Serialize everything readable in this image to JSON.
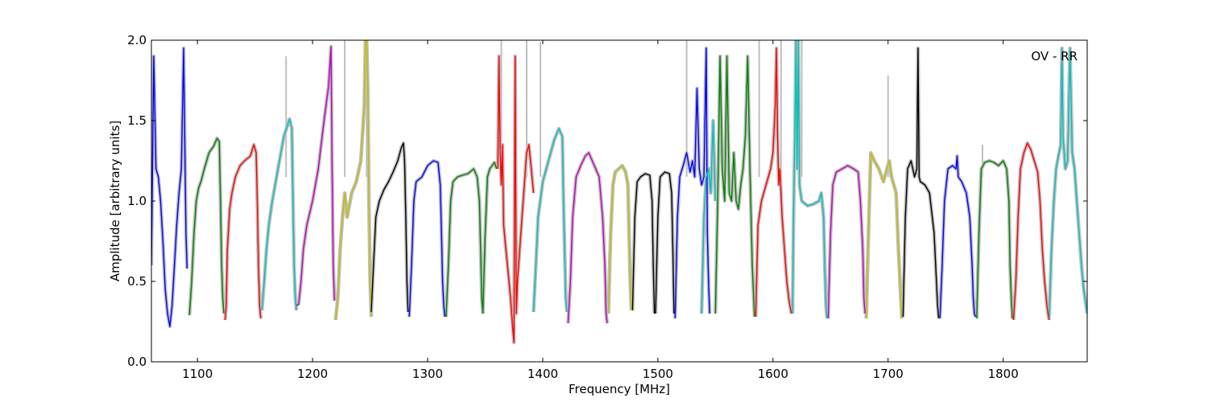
{
  "chart_data": {
    "type": "line",
    "title": "",
    "annotation": "OV - RR",
    "xlabel": "Frequency [MHz]",
    "ylabel": "Amplitude [arbitrary units]",
    "xlim": [
      1060,
      1873
    ],
    "ylim": [
      0.0,
      2.0
    ],
    "xticks": [
      1100,
      1200,
      1300,
      1400,
      1500,
      1600,
      1700,
      1800
    ],
    "xtick_labels": [
      "1100",
      "1200",
      "1300",
      "1400",
      "1500",
      "1600",
      "1700",
      "1800"
    ],
    "yticks": [
      0.0,
      0.5,
      1.0,
      1.5,
      2.0
    ],
    "ytick_labels": [
      "0.0",
      "0.5",
      "1.0",
      "1.5",
      "2.0"
    ],
    "grid": false,
    "legend": "none",
    "raw_color": "#bfbfbf",
    "series": [
      {
        "color": "#0000ff",
        "x": [
          1060,
          1062,
          1064,
          1066,
          1068,
          1070,
          1072,
          1074,
          1076,
          1078,
          1080,
          1082,
          1084,
          1086,
          1088,
          1090,
          1091
        ],
        "y": [
          0.6,
          1.9,
          1.2,
          1.15,
          1.0,
          0.75,
          0.45,
          0.3,
          0.22,
          0.35,
          0.6,
          0.85,
          1.05,
          1.2,
          1.95,
          0.8,
          0.58
        ]
      },
      {
        "color": "#008000",
        "x": [
          1093,
          1095,
          1097,
          1099,
          1101,
          1103,
          1106,
          1110,
          1114,
          1117,
          1119,
          1120,
          1121,
          1122,
          1123
        ],
        "y": [
          0.29,
          0.5,
          0.8,
          1.0,
          1.08,
          1.12,
          1.2,
          1.3,
          1.34,
          1.39,
          1.37,
          1.0,
          0.6,
          0.4,
          0.3
        ]
      },
      {
        "color": "#ff0000",
        "x": [
          1124,
          1125,
          1126,
          1128,
          1130,
          1133,
          1137,
          1141,
          1146,
          1149,
          1151,
          1152,
          1153,
          1154,
          1155
        ],
        "y": [
          0.26,
          0.35,
          0.7,
          0.95,
          1.05,
          1.15,
          1.22,
          1.25,
          1.28,
          1.35,
          1.3,
          1.0,
          0.6,
          0.35,
          0.27
        ]
      },
      {
        "color": "#00bfbf",
        "x": [
          1156,
          1158,
          1160,
          1162,
          1165,
          1170,
          1175,
          1180,
          1182,
          1183,
          1184,
          1185,
          1186
        ],
        "y": [
          0.32,
          0.5,
          0.7,
          0.85,
          1.0,
          1.2,
          1.4,
          1.51,
          1.45,
          1.0,
          0.6,
          0.4,
          0.32
        ]
      },
      {
        "color": "#bf00bf",
        "x": [
          1186,
          1188,
          1190,
          1192,
          1195,
          1200,
          1205,
          1210,
          1214,
          1216,
          1217,
          1218,
          1219
        ],
        "y": [
          0.35,
          0.36,
          0.5,
          0.7,
          0.85,
          1.0,
          1.2,
          1.5,
          1.72,
          1.96,
          1.2,
          0.6,
          0.38
        ]
      },
      {
        "color": "#bfbf00",
        "x": [
          1220,
          1222,
          1224,
          1226,
          1228,
          1230,
          1234,
          1238,
          1242,
          1245,
          1246,
          1247,
          1248,
          1249,
          1250,
          1251
        ],
        "y": [
          0.26,
          0.4,
          0.7,
          0.9,
          1.05,
          0.9,
          1.05,
          1.12,
          1.25,
          1.6,
          2.0,
          2.0,
          1.7,
          1.0,
          0.5,
          0.28
        ]
      },
      {
        "color": "#000000",
        "x": [
          1251,
          1253,
          1255,
          1258,
          1262,
          1266,
          1270,
          1274,
          1277,
          1279,
          1280,
          1281,
          1282,
          1283
        ],
        "y": [
          0.31,
          0.6,
          0.9,
          1.0,
          1.07,
          1.12,
          1.18,
          1.25,
          1.33,
          1.36,
          1.25,
          0.9,
          0.5,
          0.31
        ]
      },
      {
        "color": "#0000ff",
        "x": [
          1284,
          1286,
          1288,
          1290,
          1295,
          1300,
          1305,
          1309,
          1311,
          1312,
          1313,
          1314,
          1315
        ],
        "y": [
          0.28,
          0.6,
          1.0,
          1.12,
          1.15,
          1.22,
          1.25,
          1.24,
          1.1,
          0.8,
          0.5,
          0.35,
          0.28
        ]
      },
      {
        "color": "#008000",
        "x": [
          1316,
          1318,
          1320,
          1322,
          1326,
          1330,
          1335,
          1340,
          1343,
          1345,
          1346,
          1347,
          1348
        ],
        "y": [
          0.28,
          0.6,
          1.0,
          1.12,
          1.15,
          1.16,
          1.17,
          1.2,
          1.15,
          1.0,
          0.7,
          0.4,
          0.3
        ]
      },
      {
        "color": "#008000",
        "x": [
          1348,
          1350,
          1352,
          1354,
          1356,
          1358,
          1360
        ],
        "y": [
          0.3,
          0.8,
          1.15,
          1.2,
          1.22,
          1.24,
          1.2
        ]
      },
      {
        "color": "#ff0000",
        "x": [
          1361,
          1362,
          1363,
          1364,
          1365,
          1366,
          1368,
          1370,
          1372,
          1374,
          1375,
          1376,
          1377,
          1378,
          1380,
          1382,
          1384,
          1386,
          1388,
          1390,
          1392
        ],
        "y": [
          1.2,
          1.9,
          1.3,
          1.1,
          1.35,
          0.85,
          0.7,
          0.55,
          0.4,
          0.2,
          0.12,
          1.9,
          0.3,
          0.5,
          0.7,
          0.9,
          1.1,
          1.3,
          1.35,
          1.2,
          1.05
        ]
      },
      {
        "color": "#00bfbf",
        "x": [
          1392,
          1394,
          1396,
          1400,
          1405,
          1410,
          1414,
          1417,
          1418,
          1419,
          1420,
          1421
        ],
        "y": [
          0.31,
          0.6,
          0.9,
          1.12,
          1.25,
          1.38,
          1.45,
          1.4,
          1.0,
          0.7,
          0.4,
          0.31
        ]
      },
      {
        "color": "#bf00bf",
        "x": [
          1422,
          1424,
          1426,
          1429,
          1433,
          1437,
          1440,
          1443,
          1446,
          1449,
          1452,
          1454,
          1455,
          1456
        ],
        "y": [
          0.24,
          0.5,
          0.9,
          1.15,
          1.22,
          1.28,
          1.3,
          1.25,
          1.2,
          1.15,
          0.9,
          0.6,
          0.3,
          0.24
        ]
      },
      {
        "color": "#bfbf00",
        "x": [
          1457,
          1459,
          1461,
          1463,
          1466,
          1469,
          1472,
          1474,
          1475,
          1476,
          1477
        ],
        "y": [
          0.3,
          0.8,
          1.1,
          1.18,
          1.2,
          1.22,
          1.18,
          1.1,
          0.8,
          0.5,
          0.32
        ]
      },
      {
        "color": "#000000",
        "x": [
          1478,
          1480,
          1482,
          1485,
          1489,
          1493,
          1495,
          1496,
          1497
        ],
        "y": [
          0.32,
          0.9,
          1.12,
          1.15,
          1.17,
          1.16,
          1.0,
          0.6,
          0.3
        ]
      },
      {
        "color": "#000000",
        "x": [
          1498,
          1500,
          1502,
          1506,
          1510,
          1512,
          1513,
          1514
        ],
        "y": [
          0.3,
          0.9,
          1.15,
          1.18,
          1.17,
          1.05,
          0.7,
          0.3
        ]
      },
      {
        "color": "#0000ff",
        "x": [
          1515,
          1517,
          1519,
          1522,
          1525,
          1528,
          1530,
          1532,
          1534,
          1536,
          1538,
          1540,
          1542,
          1543,
          1544,
          1545
        ],
        "y": [
          0.27,
          0.9,
          1.15,
          1.22,
          1.3,
          1.18,
          1.25,
          1.15,
          1.7,
          1.2,
          1.1,
          1.15,
          1.95,
          0.8,
          0.5,
          0.3
        ]
      },
      {
        "color": "#00bfbf",
        "x": [
          1538,
          1540,
          1542,
          1544,
          1546,
          1548,
          1550
        ],
        "y": [
          0.3,
          0.9,
          1.15,
          1.2,
          1.05,
          1.5,
          1.0
        ]
      },
      {
        "color": "#008000",
        "x": [
          1550,
          1552,
          1554,
          1556,
          1558,
          1560,
          1562,
          1564,
          1566,
          1568,
          1570,
          1572,
          1574,
          1576,
          1578,
          1580,
          1582,
          1584
        ],
        "y": [
          0.3,
          1.0,
          1.9,
          1.2,
          1.0,
          1.9,
          1.05,
          1.0,
          1.3,
          1.0,
          0.95,
          1.1,
          1.2,
          1.4,
          1.9,
          1.2,
          0.6,
          0.28
        ]
      },
      {
        "color": "#ff0000",
        "x": [
          1585,
          1587,
          1590,
          1594,
          1598,
          1600,
          1602,
          1603,
          1604,
          1605,
          1606,
          1607,
          1608,
          1610,
          1612,
          1614,
          1616
        ],
        "y": [
          0.28,
          0.85,
          1.0,
          1.1,
          1.2,
          1.3,
          1.6,
          1.95,
          1.4,
          1.1,
          1.2,
          1.05,
          0.9,
          0.7,
          0.5,
          0.38,
          0.3
        ]
      },
      {
        "color": "#00bfbf",
        "x": [
          1617,
          1618,
          1619,
          1620,
          1621,
          1622,
          1623,
          1625,
          1630,
          1635,
          1640,
          1642,
          1644,
          1645,
          1646,
          1647
        ],
        "y": [
          0.3,
          0.95,
          1.4,
          2.0,
          1.2,
          2.0,
          1.1,
          1.0,
          0.97,
          0.98,
          1.0,
          1.05,
          0.9,
          0.6,
          0.35,
          0.27
        ]
      },
      {
        "color": "#bf00bf",
        "x": [
          1648,
          1650,
          1652,
          1655,
          1660,
          1665,
          1670,
          1674,
          1676,
          1678,
          1679,
          1680
        ],
        "y": [
          0.27,
          0.8,
          1.1,
          1.18,
          1.2,
          1.22,
          1.2,
          1.18,
          1.0,
          0.7,
          0.4,
          0.3
        ]
      },
      {
        "color": "#bfbf00",
        "x": [
          1681,
          1683,
          1685,
          1688,
          1692,
          1696,
          1699,
          1701,
          1703,
          1705,
          1707,
          1709,
          1711,
          1712
        ],
        "y": [
          0.27,
          0.8,
          1.3,
          1.25,
          1.2,
          1.12,
          1.2,
          1.25,
          1.15,
          1.1,
          1.05,
          0.7,
          0.4,
          0.27
        ]
      },
      {
        "color": "#000000",
        "x": [
          1713,
          1715,
          1717,
          1720,
          1723,
          1725,
          1726,
          1727,
          1728,
          1732,
          1736,
          1740,
          1742,
          1743,
          1744
        ],
        "y": [
          0.28,
          0.9,
          1.2,
          1.25,
          1.15,
          1.2,
          1.95,
          1.15,
          1.12,
          1.1,
          1.05,
          0.8,
          0.5,
          0.35,
          0.27
        ]
      },
      {
        "color": "#0000ff",
        "x": [
          1745,
          1747,
          1749,
          1752,
          1756,
          1759,
          1760,
          1761,
          1764,
          1768,
          1771,
          1773,
          1774,
          1775,
          1776
        ],
        "y": [
          0.27,
          0.6,
          1.0,
          1.2,
          1.22,
          1.2,
          1.28,
          1.15,
          1.12,
          1.05,
          0.9,
          0.6,
          0.4,
          0.3,
          0.28
        ]
      },
      {
        "color": "#008000",
        "x": [
          1777,
          1779,
          1781,
          1784,
          1788,
          1792,
          1796,
          1800,
          1803,
          1805,
          1806,
          1807,
          1808
        ],
        "y": [
          0.27,
          0.8,
          1.2,
          1.24,
          1.25,
          1.24,
          1.22,
          1.25,
          1.2,
          1.0,
          0.6,
          0.4,
          0.27
        ]
      },
      {
        "color": "#ff0000",
        "x": [
          1809,
          1811,
          1813,
          1815,
          1818,
          1821,
          1824,
          1827,
          1830,
          1832,
          1834,
          1836,
          1838,
          1839,
          1840
        ],
        "y": [
          0.26,
          0.5,
          0.9,
          1.2,
          1.3,
          1.36,
          1.32,
          1.25,
          1.18,
          1.0,
          0.7,
          0.5,
          0.35,
          0.3,
          0.26
        ]
      },
      {
        "color": "#00bfbf",
        "x": [
          1840,
          1842,
          1844,
          1846,
          1848,
          1850,
          1851,
          1852,
          1854,
          1856,
          1858,
          1860,
          1862,
          1864,
          1866,
          1868,
          1870,
          1872,
          1873
        ],
        "y": [
          0.28,
          0.7,
          1.0,
          1.2,
          1.28,
          1.35,
          1.95,
          1.4,
          1.2,
          1.25,
          1.95,
          1.3,
          1.2,
          1.0,
          0.8,
          0.6,
          0.45,
          0.35,
          0.3
        ]
      }
    ],
    "raw_peaks": [
      {
        "x": 1177,
        "y": 1.9
      },
      {
        "x": 1228,
        "y": 2.0
      },
      {
        "x": 1247,
        "y": 2.0
      },
      {
        "x": 1364,
        "y": 2.0
      },
      {
        "x": 1386,
        "y": 2.0
      },
      {
        "x": 1398,
        "y": 1.99
      },
      {
        "x": 1525,
        "y": 2.0
      },
      {
        "x": 1588,
        "y": 2.0
      },
      {
        "x": 1607,
        "y": 2.0
      },
      {
        "x": 1625,
        "y": 2.0
      },
      {
        "x": 1700,
        "y": 1.78
      },
      {
        "x": 1782,
        "y": 1.35
      }
    ]
  }
}
